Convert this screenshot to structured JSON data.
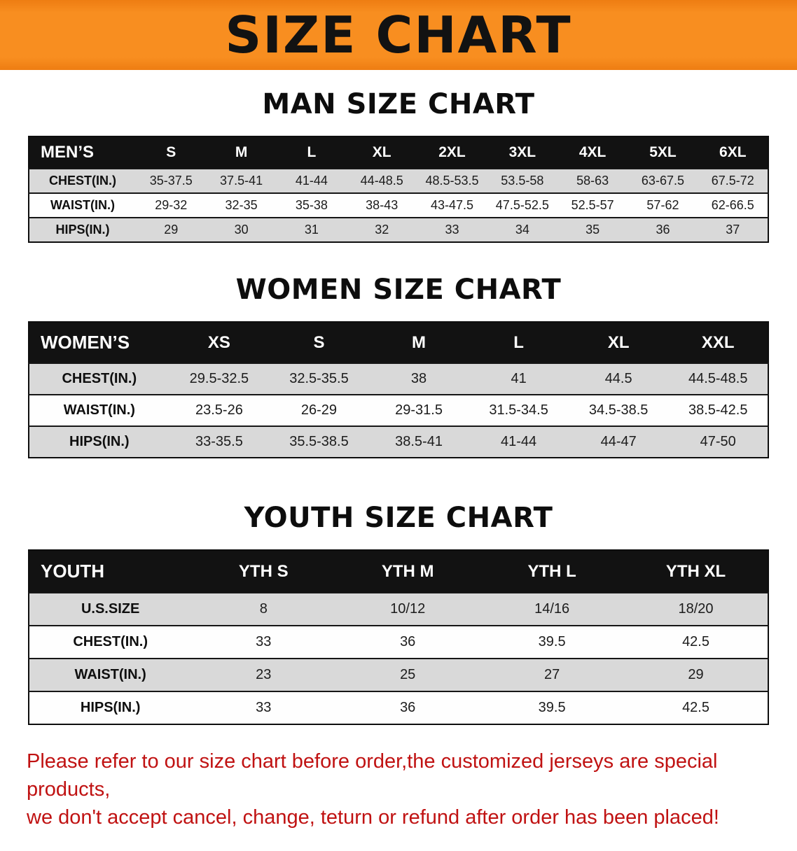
{
  "banner": {
    "title": "SIZE CHART"
  },
  "colors": {
    "banner_orange": "#f88e20",
    "table_header_black": "#121212",
    "row_gray": "#d9d9d9",
    "disclaimer_red": "#c01212"
  },
  "sections": [
    {
      "id": "men",
      "heading": "MAN SIZE CHART",
      "table": {
        "header": [
          "MEN’S",
          "S",
          "M",
          "L",
          "XL",
          "2XL",
          "3XL",
          "4XL",
          "5XL",
          "6XL"
        ],
        "rows": [
          [
            "CHEST(IN.)",
            "35-37.5",
            "37.5-41",
            "41-44",
            "44-48.5",
            "48.5-53.5",
            "53.5-58",
            "58-63",
            "63-67.5",
            "67.5-72"
          ],
          [
            "WAIST(IN.)",
            "29-32",
            "32-35",
            "35-38",
            "38-43",
            "43-47.5",
            "47.5-52.5",
            "52.5-57",
            "57-62",
            "62-66.5"
          ],
          [
            "HIPS(IN.)",
            "29",
            "30",
            "31",
            "32",
            "33",
            "34",
            "35",
            "36",
            "37"
          ]
        ]
      }
    },
    {
      "id": "women",
      "heading": "WOMEN SIZE CHART",
      "table": {
        "header": [
          "WOMEN’S",
          "XS",
          "S",
          "M",
          "L",
          "XL",
          "XXL"
        ],
        "rows": [
          [
            "CHEST(IN.)",
            "29.5-32.5",
            "32.5-35.5",
            "38",
            "41",
            "44.5",
            "44.5-48.5"
          ],
          [
            "WAIST(IN.)",
            "23.5-26",
            "26-29",
            "29-31.5",
            "31.5-34.5",
            "34.5-38.5",
            "38.5-42.5"
          ],
          [
            "HIPS(IN.)",
            "33-35.5",
            "35.5-38.5",
            "38.5-41",
            "41-44",
            "44-47",
            "47-50"
          ]
        ]
      }
    },
    {
      "id": "youth",
      "heading": "YOUTH SIZE CHART",
      "table": {
        "header": [
          "YOUTH",
          "YTH S",
          "YTH M",
          "YTH L",
          "YTH XL"
        ],
        "rows": [
          [
            "U.S.SIZE",
            "8",
            "10/12",
            "14/16",
            "18/20"
          ],
          [
            "CHEST(IN.)",
            "33",
            "36",
            "39.5",
            "42.5"
          ],
          [
            "WAIST(IN.)",
            "23",
            "25",
            "27",
            "29"
          ],
          [
            "HIPS(IN.)",
            "33",
            "36",
            "39.5",
            "42.5"
          ]
        ]
      }
    }
  ],
  "disclaimer": {
    "line1": "Please refer to our size chart before order,the customized jerseys are special products,",
    "line2": "we don't accept cancel, change, teturn or refund after order has been placed!"
  }
}
